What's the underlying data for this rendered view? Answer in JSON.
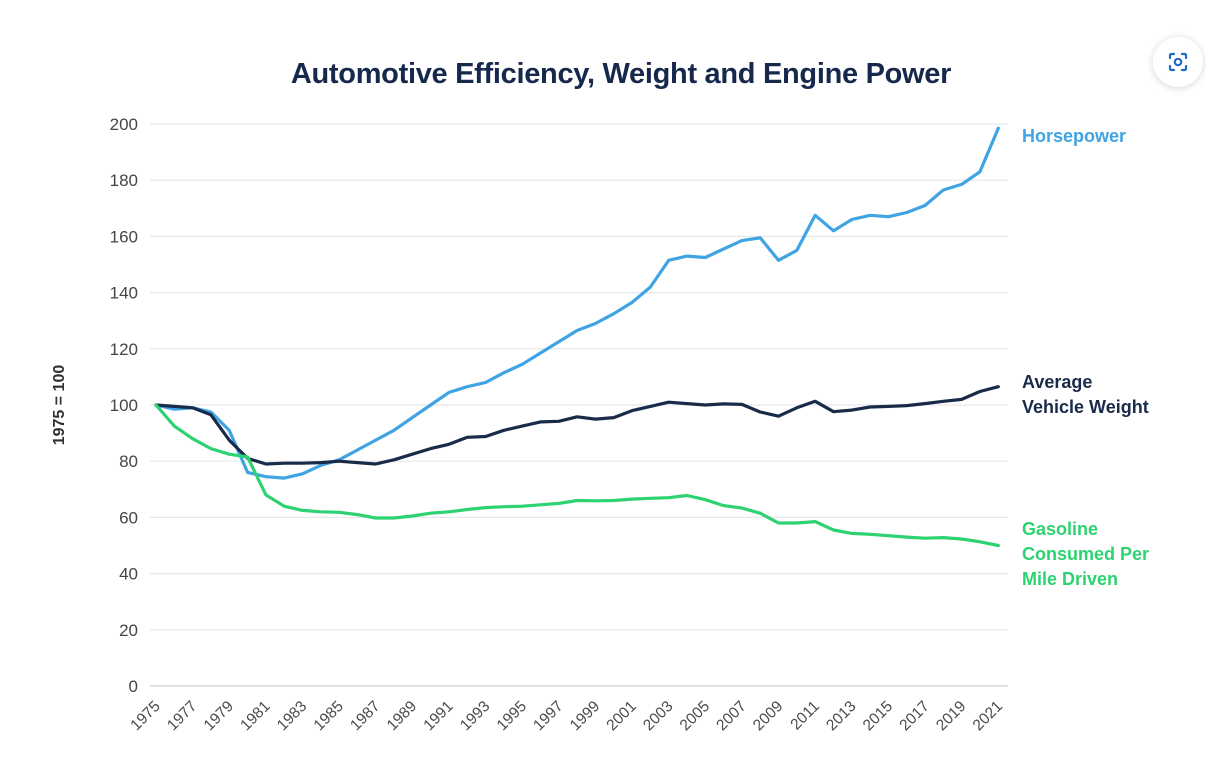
{
  "page": {
    "title": "Automotive Efficiency, Weight and Engine Power"
  },
  "controls": {
    "capture_button_icon": "screen-capture-icon"
  },
  "chart_data": {
    "type": "line",
    "title": "Automotive Efficiency, Weight and Engine Power",
    "ylabel": "1975 = 100",
    "xlabel": "",
    "ylim": [
      0,
      200
    ],
    "y_ticks": [
      0,
      20,
      40,
      60,
      80,
      100,
      120,
      140,
      160,
      180,
      200
    ],
    "x_tick_labels": [
      "1975",
      "1977",
      "1979",
      "1981",
      "1983",
      "1985",
      "1987",
      "1989",
      "1991",
      "1993",
      "1995",
      "1997",
      "1999",
      "2001",
      "2003",
      "2005",
      "2007",
      "2009",
      "2011",
      "2013",
      "2015",
      "2017",
      "2019",
      "2021"
    ],
    "grid": "horizontal",
    "legend_position": "right-of-line-ends",
    "x": [
      1975,
      1976,
      1977,
      1978,
      1979,
      1980,
      1981,
      1982,
      1983,
      1984,
      1985,
      1986,
      1987,
      1988,
      1989,
      1990,
      1991,
      1992,
      1993,
      1994,
      1995,
      1996,
      1997,
      1998,
      1999,
      2000,
      2001,
      2002,
      2003,
      2004,
      2005,
      2006,
      2007,
      2008,
      2009,
      2010,
      2011,
      2012,
      2013,
      2014,
      2015,
      2016,
      2017,
      2018,
      2019,
      2020,
      2021
    ],
    "series": [
      {
        "name": "Horsepower",
        "label": "Horsepower",
        "color": "#3FA3E4",
        "values": [
          100,
          98.5,
          99,
          97.5,
          91,
          76,
          74.5,
          74,
          75.5,
          78.5,
          80.5,
          84,
          87.5,
          91,
          95.5,
          100,
          104.5,
          106.5,
          108,
          111.5,
          114.5,
          118.5,
          122.5,
          126.5,
          129,
          132.5,
          136.5,
          142,
          151.5,
          153,
          152.5,
          155.5,
          158.5,
          159.5,
          151.5,
          155,
          167.5,
          162,
          166,
          167.5,
          167,
          168.5,
          171,
          176.5,
          178.5,
          183,
          198.5
        ]
      },
      {
        "name": "Average Vehicle Weight",
        "label": "Average\nVehicle Weight",
        "color": "#1A2B4A",
        "values": [
          100,
          99.5,
          99,
          96.5,
          87.5,
          81,
          79,
          79.3,
          79.3,
          79.5,
          80,
          79.5,
          79,
          80.5,
          82.5,
          84.5,
          86,
          88.5,
          88.8,
          91,
          92.5,
          94,
          94.2,
          95.8,
          95,
          95.5,
          98,
          99.5,
          101,
          100.5,
          100,
          100.4,
          100.2,
          97.5,
          96,
          99,
          101.3,
          97.6,
          98.2,
          99.3,
          99.5,
          99.8,
          100.5,
          101.3,
          102,
          104.8,
          106.5
        ]
      },
      {
        "name": "Gasoline Consumed Per Mile Driven",
        "label": "Gasoline\nConsumed Per\nMile Driven",
        "color": "#2DD271",
        "values": [
          100,
          92.5,
          88,
          84.5,
          82.5,
          81.5,
          68,
          64,
          62.5,
          62,
          61.8,
          61,
          59.8,
          59.8,
          60.5,
          61.5,
          62,
          62.8,
          63.5,
          63.8,
          64,
          64.5,
          65,
          66,
          65.9,
          66,
          66.5,
          66.8,
          67,
          67.8,
          66.3,
          64.2,
          63.3,
          61.5,
          58,
          58,
          58.5,
          55.5,
          54.3,
          54,
          53.5,
          53,
          52.6,
          52.8,
          52.3,
          51.3,
          50
        ]
      }
    ]
  }
}
